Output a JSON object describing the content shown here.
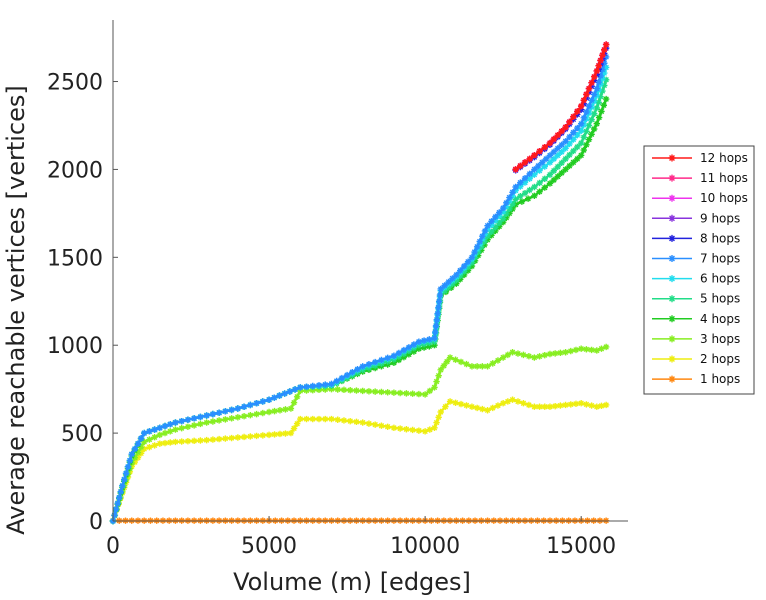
{
  "chart_data": {
    "type": "line",
    "title": "",
    "xlabel": "Volume (m) [edges]",
    "ylabel": "Average reachable vertices [vertices]",
    "xlim": [
      0,
      16500
    ],
    "ylim": [
      0,
      2850
    ],
    "xticks": [
      0,
      5000,
      10000,
      15000
    ],
    "xtick_labels": [
      "0",
      "5000",
      "10000",
      "15000"
    ],
    "yticks": [
      0,
      500,
      1000,
      1500,
      2000,
      2500
    ],
    "ytick_labels": [
      "0",
      "500",
      "1000",
      "1500",
      "2000",
      "2500"
    ],
    "grid": false,
    "legend_position": "right",
    "series": [
      {
        "name": "12 hops",
        "color": "#ff1a1a",
        "x": [
          12900,
          13500,
          14000,
          14500,
          15000,
          15500,
          15800
        ],
        "y": [
          2000,
          2080,
          2150,
          2240,
          2360,
          2560,
          2710
        ]
      },
      {
        "name": "11 hops",
        "color": "#ff2a8a",
        "x": [
          12900,
          13500,
          14000,
          14500,
          15000,
          15500,
          15800
        ],
        "y": [
          2000,
          2080,
          2150,
          2240,
          2360,
          2560,
          2710
        ]
      },
      {
        "name": "10 hops",
        "color": "#ee33ee",
        "x": [
          12900,
          13500,
          14000,
          14500,
          15000,
          15500,
          15800
        ],
        "y": [
          2000,
          2080,
          2150,
          2240,
          2360,
          2560,
          2710
        ]
      },
      {
        "name": "9 hops",
        "color": "#8833dd",
        "x": [
          12900,
          13500,
          14000,
          14500,
          15000,
          15500,
          15800
        ],
        "y": [
          2000,
          2080,
          2150,
          2240,
          2360,
          2560,
          2710
        ]
      },
      {
        "name": "8 hops",
        "color": "#2222dd",
        "x": [
          12900,
          13500,
          14000,
          14500,
          15000,
          15500,
          15800
        ],
        "y": [
          1995,
          2070,
          2140,
          2230,
          2340,
          2540,
          2690
        ]
      },
      {
        "name": "7 hops",
        "color": "#2a8fff",
        "x": [
          0,
          300,
          600,
          1000,
          1500,
          2000,
          3000,
          4000,
          5000,
          6000,
          7000,
          8000,
          9000,
          9800,
          10300,
          10500,
          11000,
          11500,
          12000,
          12500,
          12900,
          13500,
          14000,
          14500,
          15000,
          15500,
          15800
        ],
        "y": [
          0,
          200,
          380,
          500,
          530,
          560,
          600,
          640,
          690,
          760,
          780,
          880,
          940,
          1020,
          1040,
          1320,
          1400,
          1500,
          1680,
          1780,
          1900,
          2000,
          2080,
          2160,
          2260,
          2460,
          2640
        ]
      },
      {
        "name": "6 hops",
        "color": "#22ddee",
        "x": [
          0,
          300,
          600,
          1000,
          1500,
          2000,
          3000,
          4000,
          5000,
          6000,
          7000,
          8000,
          9000,
          9800,
          10300,
          10500,
          11000,
          11500,
          12000,
          12500,
          12900,
          13500,
          14000,
          14500,
          15000,
          15500,
          15800
        ],
        "y": [
          0,
          200,
          380,
          500,
          530,
          560,
          600,
          640,
          690,
          760,
          775,
          875,
          935,
          1015,
          1035,
          1310,
          1390,
          1490,
          1660,
          1760,
          1880,
          1970,
          2040,
          2120,
          2220,
          2420,
          2580
        ]
      },
      {
        "name": "5 hops",
        "color": "#22dd88",
        "x": [
          0,
          300,
          600,
          1000,
          1500,
          2000,
          3000,
          4000,
          5000,
          6000,
          7000,
          8000,
          9000,
          9800,
          10300,
          10500,
          11000,
          11500,
          12000,
          12500,
          12900,
          13500,
          14000,
          14500,
          15000,
          15500,
          15800
        ],
        "y": [
          0,
          200,
          380,
          500,
          530,
          560,
          600,
          640,
          690,
          760,
          770,
          860,
          920,
          1000,
          1020,
          1290,
          1370,
          1470,
          1620,
          1720,
          1830,
          1900,
          1970,
          2060,
          2150,
          2350,
          2510
        ]
      },
      {
        "name": "4 hops",
        "color": "#22cc22",
        "x": [
          0,
          300,
          600,
          1000,
          1500,
          2000,
          3000,
          4000,
          5000,
          6000,
          7000,
          8000,
          9000,
          9800,
          10300,
          10500,
          11000,
          11500,
          12000,
          12500,
          12900,
          13500,
          14000,
          14500,
          15000,
          15500,
          15800
        ],
        "y": [
          0,
          190,
          370,
          500,
          530,
          560,
          600,
          640,
          690,
          760,
          770,
          850,
          900,
          980,
          1000,
          1280,
          1350,
          1450,
          1600,
          1700,
          1800,
          1850,
          1920,
          2000,
          2080,
          2260,
          2400
        ]
      },
      {
        "name": "3 hops",
        "color": "#88ee22",
        "x": [
          0,
          300,
          600,
          1000,
          1500,
          2000,
          3000,
          4000,
          5000,
          5700,
          6000,
          7000,
          8000,
          9000,
          10000,
          10300,
          10500,
          10800,
          11500,
          12000,
          12500,
          12800,
          13500,
          14000,
          14500,
          15000,
          15500,
          15800
        ],
        "y": [
          0,
          170,
          330,
          450,
          490,
          520,
          560,
          590,
          620,
          640,
          740,
          750,
          740,
          730,
          720,
          760,
          860,
          930,
          880,
          880,
          930,
          960,
          930,
          950,
          960,
          980,
          970,
          990
        ]
      },
      {
        "name": "2 hops",
        "color": "#eeee11",
        "x": [
          0,
          300,
          600,
          1000,
          1500,
          2000,
          3000,
          4000,
          5000,
          5700,
          6000,
          7000,
          8000,
          9000,
          10000,
          10300,
          10500,
          10800,
          11500,
          12000,
          12500,
          12800,
          13500,
          14000,
          14500,
          15000,
          15500,
          15800
        ],
        "y": [
          0,
          160,
          310,
          410,
          440,
          450,
          460,
          475,
          490,
          500,
          580,
          580,
          560,
          530,
          510,
          530,
          620,
          680,
          650,
          630,
          670,
          690,
          650,
          650,
          660,
          670,
          650,
          660
        ]
      },
      {
        "name": "1 hops",
        "color": "#ff8811",
        "x": [
          0,
          1000,
          2000,
          4000,
          6000,
          8000,
          10000,
          12000,
          14000,
          15800
        ],
        "y": [
          2,
          2,
          2,
          2,
          2,
          2,
          2,
          2,
          2,
          2
        ]
      }
    ]
  }
}
